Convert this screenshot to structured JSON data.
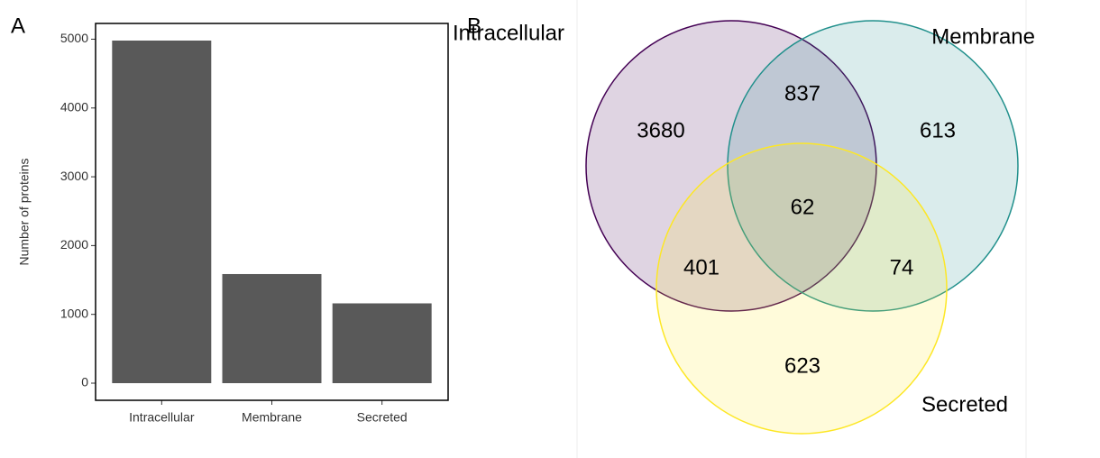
{
  "chart_data": [
    {
      "type": "bar",
      "panel_label": "A",
      "categories": [
        "Intracellular",
        "Membrane",
        "Secreted"
      ],
      "values": [
        4980,
        1586,
        1160
      ],
      "color": "#595959",
      "ylabel": "Number of proteins",
      "ylim": [
        -249,
        5229
      ],
      "yticks": [
        0,
        1000,
        2000,
        3000,
        4000,
        5000
      ]
    },
    {
      "type": "venn",
      "panel_label": "B",
      "sets": [
        {
          "name": "Intracellular",
          "color": "#440154"
        },
        {
          "name": "Membrane",
          "color": "#21908c"
        },
        {
          "name": "Secreted",
          "color": "#fde725"
        }
      ],
      "values": [
        3680,
        613,
        623,
        837,
        401,
        74,
        62
      ]
    }
  ]
}
